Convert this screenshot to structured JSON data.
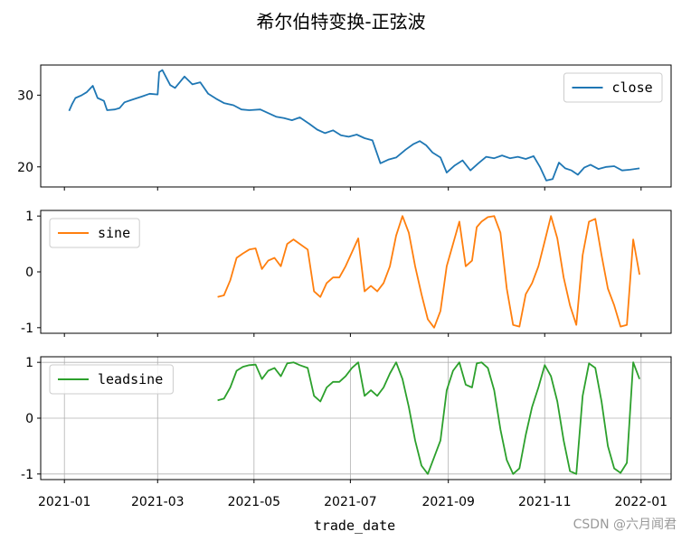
{
  "chart_data": {
    "type": "line",
    "title": "希尔伯特变换-正弦波",
    "xlabel": "trade_date",
    "x_ticks": [
      "2021-01",
      "2021-03",
      "2021-05",
      "2021-07",
      "2021-09",
      "2021-11",
      "2022-01"
    ],
    "panels": [
      {
        "series": [
          {
            "name": "close",
            "color": "#1f77b4",
            "x": [
              "2021-01-04",
              "2021-01-06",
              "2021-01-08",
              "2021-01-12",
              "2021-01-15",
              "2021-01-19",
              "2021-01-22",
              "2021-01-26",
              "2021-01-28",
              "2021-02-02",
              "2021-02-05",
              "2021-02-08",
              "2021-02-12",
              "2021-02-19",
              "2021-02-24",
              "2021-03-01",
              "2021-03-02",
              "2021-03-04",
              "2021-03-09",
              "2021-03-12",
              "2021-03-18",
              "2021-03-23",
              "2021-03-28",
              "2021-04-02",
              "2021-04-07",
              "2021-04-12",
              "2021-04-18",
              "2021-04-23",
              "2021-04-28",
              "2021-05-05",
              "2021-05-10",
              "2021-05-15",
              "2021-05-20",
              "2021-05-25",
              "2021-05-30",
              "2021-06-05",
              "2021-06-10",
              "2021-06-15",
              "2021-06-20",
              "2021-06-25",
              "2021-06-30",
              "2021-07-05",
              "2021-07-10",
              "2021-07-15",
              "2021-07-20",
              "2021-07-25",
              "2021-07-30",
              "2021-08-05",
              "2021-08-10",
              "2021-08-14",
              "2021-08-18",
              "2021-08-22",
              "2021-08-27",
              "2021-08-31",
              "2021-09-05",
              "2021-09-10",
              "2021-09-15",
              "2021-09-20",
              "2021-09-25",
              "2021-09-30",
              "2021-10-05",
              "2021-10-10",
              "2021-10-15",
              "2021-10-20",
              "2021-10-25",
              "2021-10-29",
              "2021-11-02",
              "2021-11-06",
              "2021-11-10",
              "2021-11-14",
              "2021-11-18",
              "2021-11-22",
              "2021-11-26",
              "2021-11-30",
              "2021-12-05",
              "2021-12-10",
              "2021-12-15",
              "2021-12-20",
              "2021-12-25",
              "2021-12-31"
            ],
            "values": [
              27.8,
              28.8,
              29.6,
              30.0,
              30.4,
              31.3,
              29.6,
              29.2,
              27.9,
              28.0,
              28.2,
              29.0,
              29.3,
              29.8,
              30.2,
              30.1,
              33.2,
              33.5,
              31.4,
              31.0,
              32.6,
              31.5,
              31.8,
              30.2,
              29.5,
              28.9,
              28.6,
              28.0,
              27.9,
              28.0,
              27.5,
              27.0,
              26.8,
              26.5,
              26.9,
              26.0,
              25.2,
              24.7,
              25.1,
              24.4,
              24.2,
              24.5,
              24.0,
              23.7,
              20.5,
              21.0,
              21.3,
              22.4,
              23.2,
              23.6,
              23.0,
              22.0,
              21.3,
              19.2,
              20.2,
              20.9,
              19.5,
              20.5,
              21.4,
              21.2,
              21.6,
              21.2,
              21.4,
              21.1,
              21.5,
              20.0,
              18.1,
              18.3,
              20.6,
              19.8,
              19.5,
              18.9,
              19.9,
              20.3,
              19.7,
              20.0,
              20.1,
              19.5,
              19.6,
              19.8
            ]
          }
        ],
        "yticks": [
          20,
          30
        ],
        "ylim": [
          17.2,
          34.2
        ],
        "legend": "top-right",
        "grid": false
      },
      {
        "series": [
          {
            "name": "sine",
            "color": "#ff7f0e",
            "x": [
              "2021-04-08",
              "2021-04-12",
              "2021-04-16",
              "2021-04-20",
              "2021-04-24",
              "2021-04-28",
              "2021-05-02",
              "2021-05-06",
              "2021-05-10",
              "2021-05-14",
              "2021-05-18",
              "2021-05-22",
              "2021-05-26",
              "2021-05-30",
              "2021-06-04",
              "2021-06-08",
              "2021-06-12",
              "2021-06-16",
              "2021-06-20",
              "2021-06-24",
              "2021-06-28",
              "2021-07-02",
              "2021-07-06",
              "2021-07-10",
              "2021-07-14",
              "2021-07-18",
              "2021-07-22",
              "2021-07-26",
              "2021-07-30",
              "2021-08-03",
              "2021-08-07",
              "2021-08-11",
              "2021-08-15",
              "2021-08-19",
              "2021-08-23",
              "2021-08-27",
              "2021-08-31",
              "2021-09-04",
              "2021-09-08",
              "2021-09-12",
              "2021-09-16",
              "2021-09-19",
              "2021-09-22",
              "2021-09-26",
              "2021-09-30",
              "2021-10-04",
              "2021-10-08",
              "2021-10-12",
              "2021-10-16",
              "2021-10-20",
              "2021-10-24",
              "2021-10-28",
              "2021-11-01",
              "2021-11-05",
              "2021-11-09",
              "2021-11-13",
              "2021-11-17",
              "2021-11-21",
              "2021-11-25",
              "2021-11-29",
              "2021-12-03",
              "2021-12-07",
              "2021-12-11",
              "2021-12-15",
              "2021-12-19",
              "2021-12-23",
              "2021-12-27",
              "2021-12-31"
            ],
            "values": [
              -0.45,
              -0.42,
              -0.15,
              0.25,
              0.33,
              0.4,
              0.42,
              0.05,
              0.2,
              0.25,
              0.1,
              0.5,
              0.58,
              0.5,
              0.4,
              -0.35,
              -0.45,
              -0.2,
              -0.1,
              -0.1,
              0.1,
              0.35,
              0.6,
              -0.35,
              -0.25,
              -0.35,
              -0.2,
              0.1,
              0.65,
              1.0,
              0.7,
              0.1,
              -0.4,
              -0.85,
              -1.0,
              -0.7,
              0.1,
              0.5,
              0.9,
              0.1,
              0.2,
              0.8,
              0.9,
              0.98,
              1.0,
              0.7,
              -0.3,
              -0.95,
              -0.98,
              -0.4,
              -0.2,
              0.1,
              0.55,
              1.0,
              0.6,
              -0.1,
              -0.6,
              -0.95,
              0.3,
              0.9,
              0.95,
              0.3,
              -0.3,
              -0.6,
              -0.98,
              -0.95,
              0.58,
              -0.05
            ]
          }
        ],
        "yticks": [
          -1,
          0,
          1
        ],
        "ylim": [
          -1.1,
          1.1
        ],
        "legend": "top-left",
        "grid": false
      },
      {
        "series": [
          {
            "name": "leadsine",
            "color": "#2ca02c",
            "x": [
              "2021-04-08",
              "2021-04-12",
              "2021-04-16",
              "2021-04-20",
              "2021-04-24",
              "2021-04-28",
              "2021-05-02",
              "2021-05-06",
              "2021-05-10",
              "2021-05-14",
              "2021-05-18",
              "2021-05-22",
              "2021-05-26",
              "2021-05-30",
              "2021-06-04",
              "2021-06-08",
              "2021-06-12",
              "2021-06-16",
              "2021-06-20",
              "2021-06-24",
              "2021-06-28",
              "2021-07-02",
              "2021-07-06",
              "2021-07-10",
              "2021-07-14",
              "2021-07-18",
              "2021-07-22",
              "2021-07-26",
              "2021-07-30",
              "2021-08-03",
              "2021-08-07",
              "2021-08-11",
              "2021-08-15",
              "2021-08-19",
              "2021-08-23",
              "2021-08-27",
              "2021-08-31",
              "2021-09-04",
              "2021-09-08",
              "2021-09-12",
              "2021-09-16",
              "2021-09-19",
              "2021-09-22",
              "2021-09-26",
              "2021-09-30",
              "2021-10-04",
              "2021-10-08",
              "2021-10-12",
              "2021-10-16",
              "2021-10-20",
              "2021-10-24",
              "2021-10-28",
              "2021-11-01",
              "2021-11-05",
              "2021-11-09",
              "2021-11-13",
              "2021-11-17",
              "2021-11-21",
              "2021-11-25",
              "2021-11-29",
              "2021-12-03",
              "2021-12-07",
              "2021-12-11",
              "2021-12-15",
              "2021-12-19",
              "2021-12-23",
              "2021-12-27",
              "2021-12-31"
            ],
            "values": [
              0.32,
              0.35,
              0.55,
              0.85,
              0.92,
              0.95,
              0.96,
              0.7,
              0.85,
              0.9,
              0.75,
              0.98,
              1.0,
              0.95,
              0.9,
              0.4,
              0.3,
              0.55,
              0.65,
              0.65,
              0.75,
              0.9,
              1.0,
              0.4,
              0.5,
              0.4,
              0.55,
              0.8,
              1.0,
              0.7,
              0.2,
              -0.4,
              -0.85,
              -1.0,
              -0.7,
              -0.4,
              0.5,
              0.85,
              1.0,
              0.6,
              0.55,
              0.98,
              1.0,
              0.9,
              0.5,
              -0.2,
              -0.75,
              -1.0,
              -0.9,
              -0.3,
              0.2,
              0.55,
              0.95,
              0.75,
              0.3,
              -0.4,
              -0.95,
              -1.0,
              0.4,
              0.98,
              0.9,
              0.3,
              -0.5,
              -0.9,
              -0.98,
              -0.8,
              1.0,
              0.7
            ]
          }
        ],
        "yticks": [
          -1,
          0,
          1
        ],
        "ylim": [
          -1.1,
          1.1
        ],
        "legend": "top-left",
        "grid": true
      }
    ]
  },
  "watermark": "CSDN @六月闻君"
}
